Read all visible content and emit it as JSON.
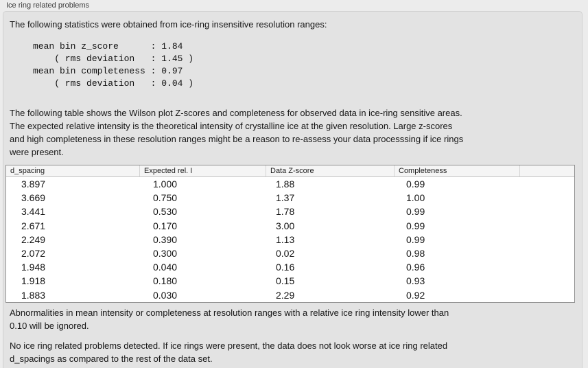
{
  "panel": {
    "title": "Ice ring related problems"
  },
  "intro": "The following statistics were obtained from ice-ring insensitive resolution ranges:",
  "stats_text": "mean bin z_score      : 1.84\n    ( rms deviation   : 1.45 )\nmean bin completeness : 0.97\n    ( rms deviation   : 0.04 )",
  "stats": {
    "mean_bin_z_score": "1.84",
    "z_score_rms_deviation": "1.45",
    "mean_bin_completeness": "0.97",
    "completeness_rms_deviation": "0.04"
  },
  "description": {
    "lines": [
      "The following table shows the Wilson plot Z-scores and completeness for observed data in ice-ring sensitive areas.",
      "The expected relative intensity is the theoretical intensity of crystalline ice at the given resolution. Large z-scores",
      "and high completeness in these resolution ranges might be a reason to re-assess your data processsing if ice rings",
      "were present."
    ]
  },
  "table": {
    "columns": [
      "d_spacing",
      "Expected rel. I",
      "Data Z-score",
      "Completeness"
    ],
    "rows": [
      [
        "3.897",
        "1.000",
        "1.88",
        "0.99"
      ],
      [
        "3.669",
        "0.750",
        "1.37",
        "1.00"
      ],
      [
        "3.441",
        "0.530",
        "1.78",
        "0.99"
      ],
      [
        "2.671",
        "0.170",
        "3.00",
        "0.99"
      ],
      [
        "2.249",
        "0.390",
        "1.13",
        "0.99"
      ],
      [
        "2.072",
        "0.300",
        "0.02",
        "0.98"
      ],
      [
        "1.948",
        "0.040",
        "0.16",
        "0.96"
      ],
      [
        "1.918",
        "0.180",
        "0.15",
        "0.93"
      ],
      [
        "1.883",
        "0.030",
        "2.29",
        "0.92"
      ]
    ]
  },
  "note_ignore": {
    "lines": [
      "Abnormalities in mean intensity or completeness at resolution ranges with a relative ice ring intensity lower than",
      "0.10 will be ignored."
    ]
  },
  "conclusion": {
    "lines": [
      "No ice ring related problems detected. If ice rings were present, the data does not look worse at ice ring related",
      "d_spacings as compared to the rest of the data set."
    ]
  },
  "colors": {
    "page_background": "#ececec",
    "groupbox_background": "#e3e3e3",
    "table_header_background": "#f5f5f5",
    "table_border": "#8f8f8f",
    "text": "#131313"
  }
}
